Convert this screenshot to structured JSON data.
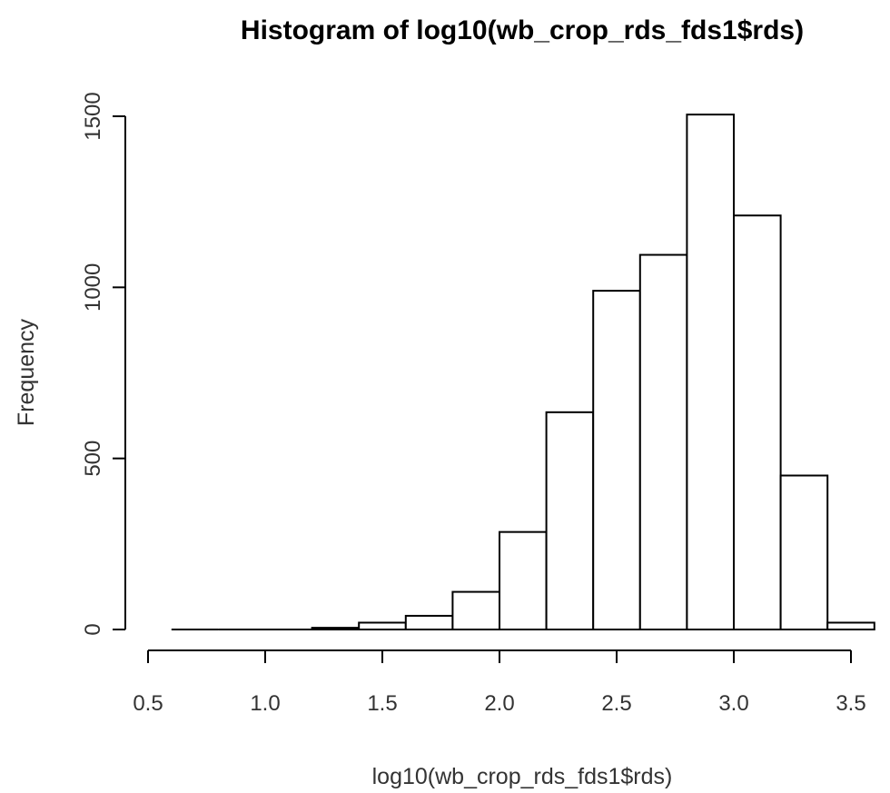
{
  "chart_data": {
    "type": "bar",
    "title": "Histogram of log10(wb_crop_rds_fds1$rds)",
    "xlabel": "log10(wb_crop_rds_fds1$rds)",
    "ylabel": "Frequency",
    "xlim": [
      0.5,
      3.6
    ],
    "ylim": [
      0,
      1500
    ],
    "bins": [
      {
        "start": 0.6,
        "end": 0.8,
        "count": 0
      },
      {
        "start": 0.8,
        "end": 1.0,
        "count": 0
      },
      {
        "start": 1.0,
        "end": 1.2,
        "count": 0
      },
      {
        "start": 1.2,
        "end": 1.4,
        "count": 5
      },
      {
        "start": 1.4,
        "end": 1.6,
        "count": 20
      },
      {
        "start": 1.6,
        "end": 1.8,
        "count": 40
      },
      {
        "start": 1.8,
        "end": 2.0,
        "count": 110
      },
      {
        "start": 2.0,
        "end": 2.2,
        "count": 285
      },
      {
        "start": 2.2,
        "end": 2.4,
        "count": 635
      },
      {
        "start": 2.4,
        "end": 2.6,
        "count": 990
      },
      {
        "start": 2.6,
        "end": 2.8,
        "count": 1095
      },
      {
        "start": 2.8,
        "end": 3.0,
        "count": 1505
      },
      {
        "start": 3.0,
        "end": 3.2,
        "count": 1210
      },
      {
        "start": 3.2,
        "end": 3.4,
        "count": 450
      },
      {
        "start": 3.4,
        "end": 3.6,
        "count": 20
      }
    ],
    "x_ticks": [
      0.5,
      1.0,
      1.5,
      2.0,
      2.5,
      3.0,
      3.5
    ],
    "x_tick_labels": [
      "0.5",
      "1.0",
      "1.5",
      "2.0",
      "2.5",
      "3.0",
      "3.5"
    ],
    "y_ticks": [
      0,
      500,
      1000,
      1500
    ],
    "y_tick_labels": [
      "0",
      "500",
      "1000",
      "1500"
    ],
    "grid": false,
    "colors": {
      "bar_fill": "#ffffff",
      "bar_stroke": "#000000"
    }
  }
}
